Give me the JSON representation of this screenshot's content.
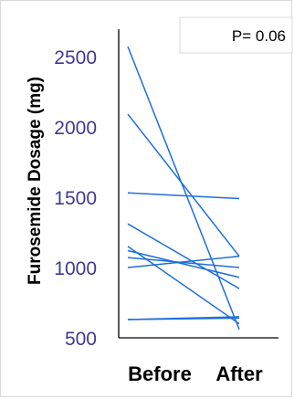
{
  "chart_data": {
    "type": "line",
    "title": "",
    "xlabel": "",
    "ylabel": "Furosemide Dosage (mg)",
    "categories": [
      "Before",
      "After"
    ],
    "ylim": [
      500,
      2700
    ],
    "yticks": [
      500,
      1000,
      1500,
      2000,
      2500
    ],
    "annotation": "P= 0.06",
    "legend": "none",
    "grid": false,
    "line_color": "#1e6fd9",
    "series": [
      {
        "values": [
          2570,
          560
        ]
      },
      {
        "values": [
          2090,
          1080
        ]
      },
      {
        "values": [
          1530,
          1490
        ]
      },
      {
        "values": [
          1310,
          850
        ]
      },
      {
        "values": [
          1150,
          600
        ]
      },
      {
        "values": [
          1120,
          930
        ]
      },
      {
        "values": [
          1070,
          1000
        ]
      },
      {
        "values": [
          1000,
          1080
        ]
      },
      {
        "values": [
          630,
          650
        ]
      },
      {
        "values": [
          630,
          640
        ]
      }
    ]
  }
}
